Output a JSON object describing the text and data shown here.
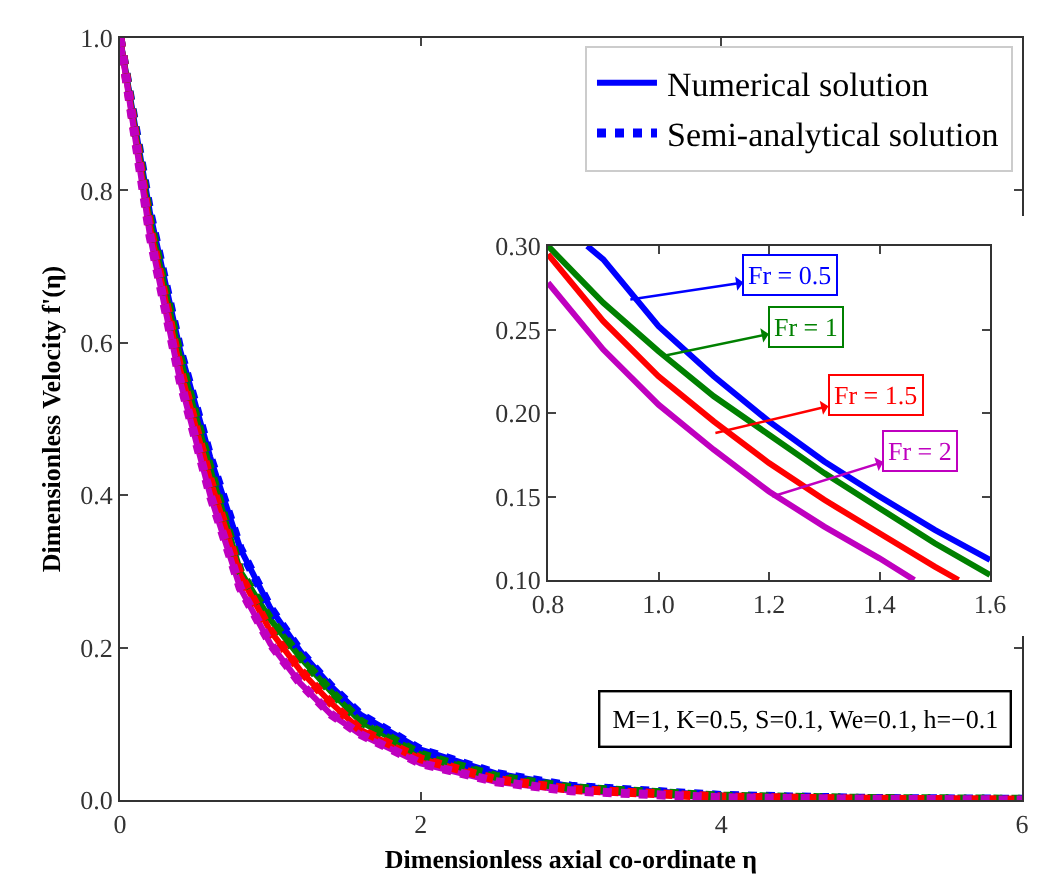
{
  "chart_data": [
    {
      "type": "line",
      "xlabel": "Dimensionless axial co-ordinate η",
      "ylabel": "Dimensionless Velocity f'(η)",
      "x": [
        0,
        0.2,
        0.4,
        0.6,
        0.8,
        1.0,
        1.2,
        1.4,
        1.6,
        2,
        2.5,
        3,
        4,
        5,
        6
      ],
      "xlim": [
        0,
        6
      ],
      "ylim": [
        0,
        1
      ],
      "xticks": [
        0,
        2,
        4,
        6
      ],
      "yticks": [
        {
          "value": 0,
          "label": "0.0"
        },
        0.2,
        0.4,
        0.6,
        0.8,
        {
          "value": 1,
          "label": "1.0"
        }
      ],
      "legend": "top right",
      "marker": "none",
      "series": [
        {
          "name": "Numerical solution",
          "color": "#0000ff",
          "line_style": "solid",
          "values": [
            1.0,
            0.77,
            0.59,
            0.45,
            0.33,
            0.252,
            0.195,
            0.15,
            0.112,
            0.066,
            0.035,
            0.018,
            0.006,
            0.002,
            0.001
          ]
        },
        {
          "color": "#008000",
          "line_style": "solid",
          "values": [
            1.0,
            0.76,
            0.58,
            0.435,
            0.3,
            0.237,
            0.187,
            0.143,
            0.103,
            0.06,
            0.031,
            0.016,
            0.005,
            0.002,
            0.001
          ]
        },
        {
          "color": "#ff0000",
          "line_style": "solid",
          "values": [
            1.0,
            0.75,
            0.565,
            0.42,
            0.295,
            0.222,
            0.17,
            0.128,
            0.092,
            0.054,
            0.027,
            0.014,
            0.004,
            0.001,
            0
          ]
        },
        {
          "color": "#bf00bf",
          "line_style": "solid",
          "values": [
            1.0,
            0.74,
            0.55,
            0.4,
            0.278,
            0.205,
            0.153,
            0.113,
            0.086,
            0.048,
            0.024,
            0.012,
            0.003,
            0.001,
            0
          ]
        },
        {
          "name": "Semi-analytical solution",
          "color": "#0000ff",
          "line_style": "dotted",
          "values": [
            1.0,
            0.77,
            0.59,
            0.45,
            0.33,
            0.252,
            0.195,
            0.15,
            0.112,
            0.066,
            0.035,
            0.018,
            0.006,
            0.002,
            0.001
          ]
        },
        {
          "color": "#008000",
          "line_style": "dotted",
          "values": [
            1.0,
            0.76,
            0.58,
            0.435,
            0.3,
            0.237,
            0.187,
            0.143,
            0.103,
            0.06,
            0.031,
            0.016,
            0.005,
            0.002,
            0.001
          ]
        },
        {
          "color": "#ff0000",
          "line_style": "dotted",
          "values": [
            1.0,
            0.75,
            0.565,
            0.42,
            0.295,
            0.222,
            0.17,
            0.128,
            0.092,
            0.054,
            0.027,
            0.014,
            0.004,
            0.001,
            0
          ]
        },
        {
          "color": "#bf00bf",
          "line_style": "dotted",
          "values": [
            1.0,
            0.74,
            0.55,
            0.4,
            0.278,
            0.205,
            0.153,
            0.113,
            0.086,
            0.048,
            0.024,
            0.012,
            0.003,
            0.001,
            0
          ]
        }
      ],
      "annotations": [
        "M=1, K=0.5, S=0.1, We=0.1, h=−0.1"
      ]
    },
    {
      "type": "line",
      "xlim": [
        0.8,
        1.6
      ],
      "ylim": [
        0.1,
        0.3
      ],
      "xticks": [
        0.8,
        {
          "value": 1,
          "label": "1.0"
        },
        1.2,
        1.4,
        1.6
      ],
      "yticks": [
        {
          "value": 0.1,
          "label": "0.10"
        },
        0.15,
        {
          "value": 0.2,
          "label": "0.20"
        },
        0.25,
        {
          "value": 0.3,
          "label": "0.30"
        }
      ],
      "marker": "none",
      "series": [
        {
          "color": "#0000ff",
          "line_style": "solid",
          "x": [
            0.871,
            0.9,
            1.0,
            1.1,
            1.2,
            1.3,
            1.4,
            1.5,
            1.6
          ],
          "values": [
            0.3,
            0.292,
            0.252,
            0.222,
            0.195,
            0.171,
            0.15,
            0.13,
            0.112
          ]
        },
        {
          "color": "#008000",
          "line_style": "solid",
          "x": [
            0.8,
            0.9,
            1.0,
            1.1,
            1.2,
            1.3,
            1.4,
            1.5,
            1.6
          ],
          "values": [
            0.3,
            0.266,
            0.237,
            0.21,
            0.187,
            0.164,
            0.143,
            0.122,
            0.103
          ]
        },
        {
          "color": "#ff0000",
          "line_style": "solid",
          "x": [
            0.8,
            0.9,
            1.0,
            1.1,
            1.2,
            1.3,
            1.4,
            1.5,
            1.543
          ],
          "values": [
            0.295,
            0.255,
            0.222,
            0.195,
            0.17,
            0.148,
            0.128,
            0.108,
            0.1
          ]
        },
        {
          "color": "#bf00bf",
          "line_style": "solid",
          "x": [
            0.8,
            0.9,
            1.0,
            1.1,
            1.2,
            1.3,
            1.4,
            1.463
          ],
          "values": [
            0.278,
            0.238,
            0.205,
            0.178,
            0.153,
            0.132,
            0.113,
            0.1
          ]
        }
      ],
      "annotations": [
        {
          "text": "Fr = 0.5",
          "x": 0.949,
          "y": 0.268
        },
        {
          "text": "Fr = 1",
          "x": 1.006,
          "y": 0.234
        },
        {
          "text": "Fr = 1.5",
          "x": 1.103,
          "y": 0.188
        },
        {
          "text": "Fr = 2",
          "x": 1.206,
          "y": 0.15
        }
      ]
    }
  ]
}
